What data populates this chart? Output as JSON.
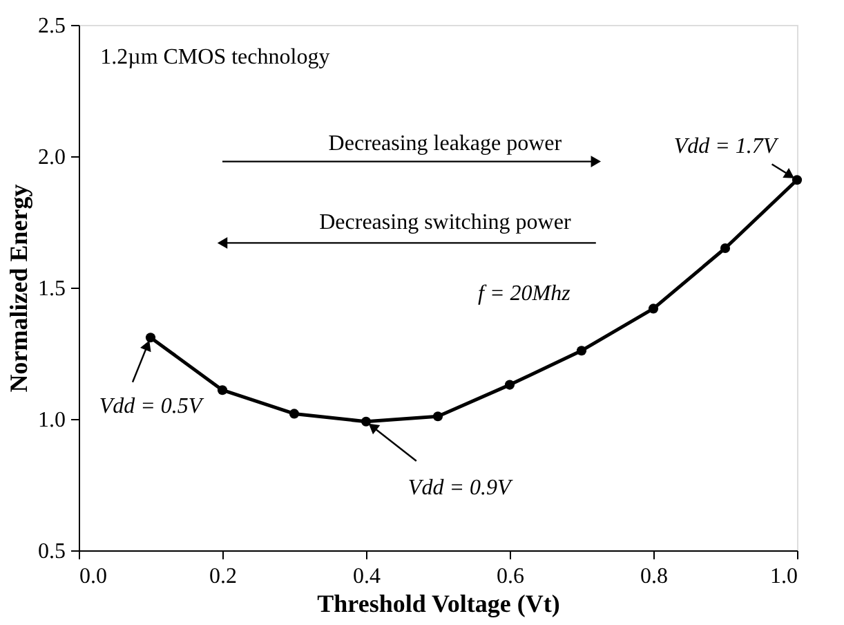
{
  "chart_data": {
    "type": "line",
    "xlabel": "Threshold Voltage (Vt)",
    "ylabel": "Normalized Energy",
    "x": [
      0.1,
      0.2,
      0.3,
      0.4,
      0.5,
      0.6,
      0.7,
      0.8,
      0.9,
      1.0
    ],
    "series": [
      {
        "color": "#000000",
        "values": [
          1.31,
          1.11,
          1.02,
          0.99,
          1.01,
          1.13,
          1.26,
          1.42,
          1.65,
          1.91
        ]
      }
    ],
    "xlim": [
      0,
      1.0
    ],
    "xticks": [
      {
        "value": 0,
        "label": "0.0"
      },
      0.2,
      0.4,
      0.6,
      0.8,
      {
        "value": 1.0,
        "label": "1.0"
      }
    ],
    "ylim": [
      0.5,
      2.5
    ],
    "yticks": [
      0.5,
      {
        "value": 1.0,
        "label": "1.0"
      },
      1.5,
      {
        "value": 2.0,
        "label": "2.0"
      },
      2.5
    ],
    "annotations": [
      "1.2µm CMOS technology",
      "Decreasing leakage power",
      "Decreasing switching power",
      "f = 20Mhz",
      {
        "text": "Vdd = 0.5V",
        "x": 0.1,
        "y": 1.31
      },
      {
        "text": "Vdd = 0.9V",
        "x": 0.4,
        "y": 0.99
      },
      {
        "text": "Vdd = 1.7V",
        "x": 1.0,
        "y": 1.91
      }
    ],
    "grid": false,
    "marker": "circle",
    "line_style": "solid"
  }
}
